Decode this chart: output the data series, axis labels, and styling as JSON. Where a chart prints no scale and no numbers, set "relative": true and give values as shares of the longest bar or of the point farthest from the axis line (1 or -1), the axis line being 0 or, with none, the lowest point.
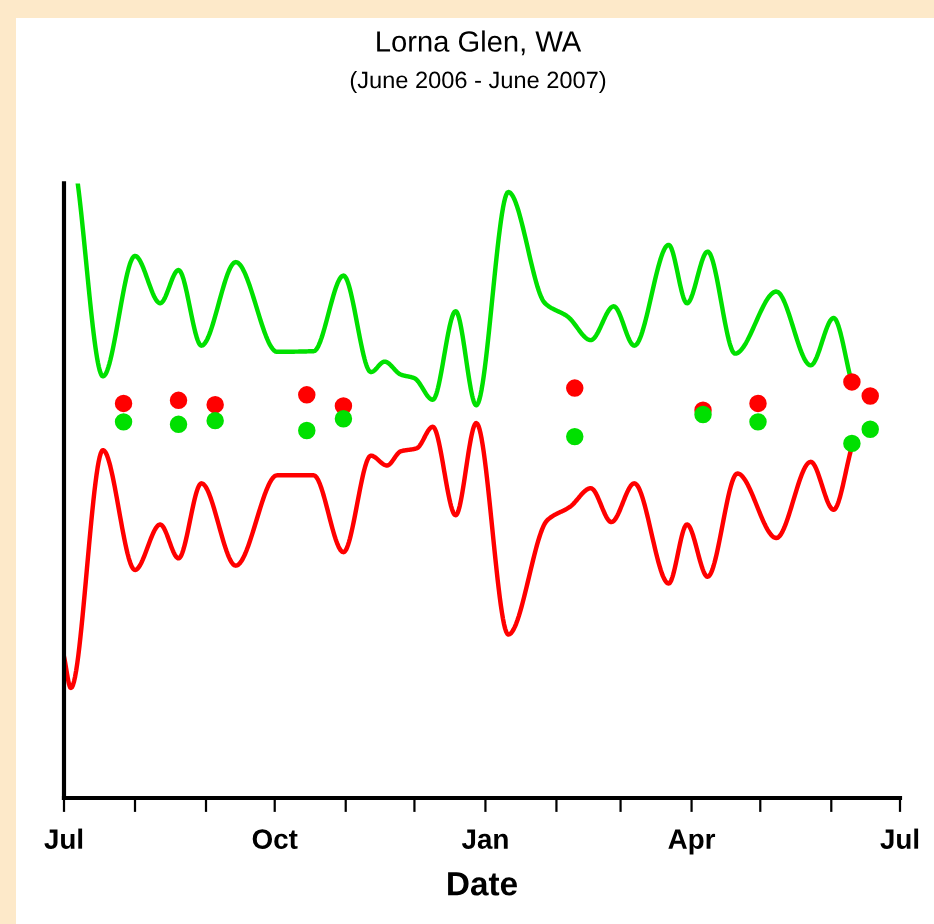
{
  "chart_data": {
    "type": "line",
    "title": "Lorna Glen, WA",
    "subtitle": "(June 2006 - June 2007)",
    "xlabel": "Date",
    "relative": true,
    "xlim": [
      "2006-07-01",
      "2007-07-01"
    ],
    "xticks": [
      {
        "value": "2006-07-01",
        "label": "Jul"
      },
      {
        "value": "2006-08-01",
        "label": null
      },
      {
        "value": "2006-09-01",
        "label": null
      },
      {
        "value": "2006-10-01",
        "label": "Oct"
      },
      {
        "value": "2006-11-01",
        "label": null
      },
      {
        "value": "2006-12-01",
        "label": null
      },
      {
        "value": "2007-01-01",
        "label": "Jan"
      },
      {
        "value": "2007-02-01",
        "label": null
      },
      {
        "value": "2007-03-01",
        "label": null
      },
      {
        "value": "2007-04-01",
        "label": "Apr"
      },
      {
        "value": "2007-05-01",
        "label": null
      },
      {
        "value": "2007-06-01",
        "label": null
      },
      {
        "value": "2007-07-01",
        "label": "Jul"
      }
    ],
    "grid": false,
    "legend": false,
    "series": [
      {
        "color": "#00e000",
        "x": [
          "2006-07-07",
          "2006-07-18",
          "2006-08-01",
          "2006-08-12",
          "2006-08-20",
          "2006-08-30",
          "2006-09-14",
          "2006-10-02",
          "2006-10-18",
          "2006-10-31",
          "2006-11-12",
          "2006-11-18",
          "2006-11-25",
          "2006-12-01",
          "2006-12-09",
          "2006-12-19",
          "2006-12-28",
          "2007-01-11",
          "2007-01-27",
          "2007-02-06",
          "2007-02-16",
          "2007-02-26",
          "2007-03-07",
          "2007-03-22",
          "2007-03-30",
          "2007-04-08",
          "2007-04-20",
          "2007-05-08",
          "2007-05-23",
          "2007-06-02",
          "2007-06-10"
        ],
        "values": [
          1.0,
          0.686,
          0.882,
          0.805,
          0.859,
          0.736,
          0.872,
          0.726,
          0.727,
          0.85,
          0.693,
          0.71,
          0.689,
          0.683,
          0.648,
          0.792,
          0.639,
          0.986,
          0.805,
          0.783,
          0.745,
          0.8,
          0.736,
          0.9,
          0.805,
          0.889,
          0.723,
          0.824,
          0.704,
          0.781,
          0.675
        ]
      },
      {
        "color": "#ff0000",
        "x": [
          "2006-07-01",
          "2006-07-04",
          "2006-07-18",
          "2006-08-01",
          "2006-08-12",
          "2006-08-20",
          "2006-08-30",
          "2006-09-14",
          "2006-10-02",
          "2006-10-18",
          "2006-10-31",
          "2006-11-12",
          "2006-11-19",
          "2006-11-25",
          "2006-12-02",
          "2006-12-09",
          "2006-12-19",
          "2006-12-28",
          "2007-01-11",
          "2007-01-28",
          "2007-02-07",
          "2007-02-16",
          "2007-02-25",
          "2007-03-07",
          "2007-03-22",
          "2007-03-30",
          "2007-04-08",
          "2007-04-21",
          "2007-05-08",
          "2007-05-23",
          "2007-06-02",
          "2007-06-10"
        ],
        "values": [
          0.23,
          0.179,
          0.566,
          0.371,
          0.445,
          0.39,
          0.512,
          0.378,
          0.525,
          0.525,
          0.4,
          0.557,
          0.541,
          0.564,
          0.569,
          0.604,
          0.46,
          0.61,
          0.266,
          0.452,
          0.474,
          0.504,
          0.449,
          0.512,
          0.349,
          0.445,
          0.36,
          0.528,
          0.423,
          0.547,
          0.469,
          0.572
        ]
      },
      {
        "type": "scatter",
        "color": "#ff0000",
        "marker": "circle",
        "x": [
          "2006-07-27",
          "2006-08-20",
          "2006-09-05",
          "2006-10-15",
          "2006-10-31",
          "2007-02-09",
          "2007-04-06",
          "2007-04-30",
          "2007-06-10",
          "2007-06-18"
        ],
        "values": [
          0.642,
          0.647,
          0.64,
          0.656,
          0.638,
          0.667,
          0.631,
          0.642,
          0.677,
          0.654
        ]
      },
      {
        "type": "scatter",
        "color": "#00e000",
        "marker": "circle",
        "x": [
          "2006-07-27",
          "2006-08-20",
          "2006-09-05",
          "2006-10-15",
          "2006-10-31",
          "2007-02-09",
          "2007-04-06",
          "2007-04-30",
          "2007-06-10",
          "2007-06-18"
        ],
        "values": [
          0.612,
          0.608,
          0.614,
          0.598,
          0.617,
          0.588,
          0.624,
          0.612,
          0.577,
          0.6
        ]
      }
    ]
  }
}
